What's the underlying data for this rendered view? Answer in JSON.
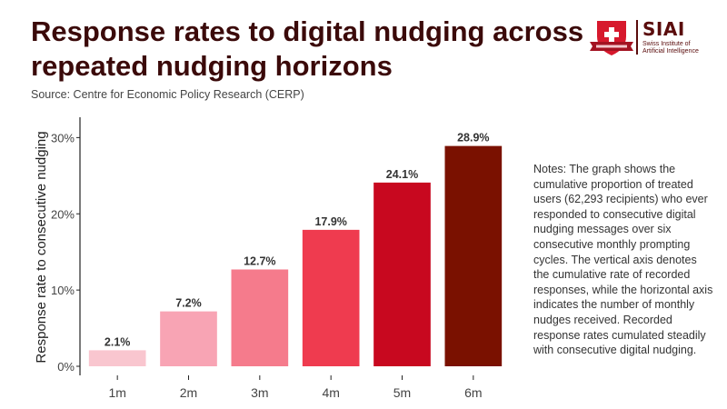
{
  "header": {
    "title": "Response rates to digital nudging across repeated nudging horizons",
    "source": "Source: Centre for Economic Policy Research (CERP)"
  },
  "logo": {
    "name": "SIAI",
    "subtitle_line1": "Swiss Institute of",
    "subtitle_line2": "Artificial Intelligence",
    "shield_color": "#d7192d",
    "ribbon_color": "#a31222"
  },
  "notes": "Notes: The graph shows the cumulative proportion of treated users (62,293 recipients) who ever responded to consecutive digital nudging messages over six consecutive monthly prompting cycles. The vertical axis denotes the cumulative rate of recorded responses, while the horizontal axis indicates the number of monthly nudges received. Recorded response rates cumulated steadily with consecutive digital nudging.",
  "chart_data": {
    "type": "bar",
    "title": "",
    "xlabel": "",
    "ylabel": "Response rate to consecutive nudging",
    "categories": [
      "1m",
      "2m",
      "3m",
      "4m",
      "5m",
      "6m"
    ],
    "values": [
      2.1,
      7.2,
      12.7,
      17.9,
      24.1,
      28.9
    ],
    "value_labels": [
      "2.1%",
      "7.2%",
      "12.7%",
      "17.9%",
      "24.1%",
      "28.9%"
    ],
    "colors": [
      "#f9c6cf",
      "#f8a4b4",
      "#f57b8c",
      "#ef3b4f",
      "#c8081f",
      "#7a1100"
    ],
    "ylim": [
      0,
      31
    ],
    "yticks": [
      0,
      10,
      20,
      30
    ],
    "ytick_labels": [
      "0%",
      "10%",
      "20%",
      "30%"
    ],
    "grid": false,
    "legend": "none"
  }
}
